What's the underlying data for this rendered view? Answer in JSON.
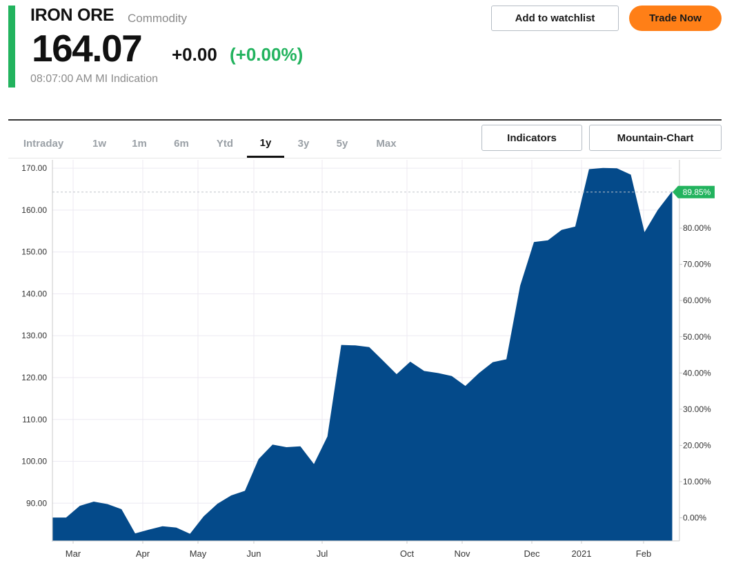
{
  "header": {
    "title": "IRON ORE",
    "asset_type": "Commodity",
    "price": "164.07",
    "change": "+0.00",
    "change_pct": "(+0.00%)",
    "timestamp": "08:07:00 AM MI Indication"
  },
  "actions": {
    "watchlist_label": "Add to watchlist",
    "trade_label": "Trade Now",
    "indicators_label": "Indicators",
    "chart_type_label": "Mountain-Chart"
  },
  "tabs": [
    {
      "label": "Intraday",
      "active": false
    },
    {
      "label": "1w",
      "active": false
    },
    {
      "label": "1m",
      "active": false
    },
    {
      "label": "6m",
      "active": false
    },
    {
      "label": "Ytd",
      "active": false
    },
    {
      "label": "1y",
      "active": true
    },
    {
      "label": "3y",
      "active": false
    },
    {
      "label": "5y",
      "active": false
    },
    {
      "label": "Max",
      "active": false
    }
  ],
  "colors": {
    "accent_green": "#22b35e",
    "change_green": "#22b35e",
    "trade_orange": "#ff7f17",
    "area_fill": "#044a8a",
    "grid": "#ece9f2",
    "axis_text": "#333333"
  },
  "chart_data": {
    "type": "area",
    "title": "",
    "xlabel": "",
    "ylabel": "",
    "x_tick_labels": [
      "Mar",
      "Apr",
      "May",
      "Jun",
      "Jul",
      "Oct",
      "Nov",
      "Dec",
      "2021",
      "Feb"
    ],
    "y_ticks": [
      90,
      100,
      110,
      120,
      130,
      140,
      150,
      160,
      170
    ],
    "y_tick_labels": [
      "90.00",
      "100.00",
      "110.00",
      "120.00",
      "130.00",
      "140.00",
      "150.00",
      "160.00",
      "170.00"
    ],
    "ylim": [
      81.0,
      172.0
    ],
    "right_axis_ticks": [
      0,
      10,
      20,
      30,
      40,
      50,
      60,
      70,
      80
    ],
    "right_axis_labels": [
      "0.00%",
      "10.00%",
      "20.00%",
      "30.00%",
      "40.00%",
      "50.00%",
      "60.00%",
      "70.00%",
      "80.00%"
    ],
    "right_axis_base": 86.5,
    "current_marker": {
      "label": "89.85%",
      "value": 164.3
    },
    "grid": true,
    "series": [
      {
        "values": [
          86.5,
          86.5,
          89.3,
          90.3,
          89.7,
          88.5,
          82.7,
          83.6,
          84.4,
          84.1,
          82.6,
          86.8,
          89.8,
          91.8,
          92.9,
          100.5,
          103.9,
          103.3,
          103.5,
          99.2,
          105.9,
          127.7,
          127.6,
          127.2,
          124.0,
          120.7,
          123.7,
          121.5,
          121.0,
          120.3,
          117.9,
          121.0,
          123.6,
          124.3,
          141.9,
          152.3,
          152.7,
          155.2,
          156.0,
          169.7,
          170.0,
          169.9,
          168.4,
          154.5,
          160.0,
          164.3
        ]
      }
    ]
  }
}
